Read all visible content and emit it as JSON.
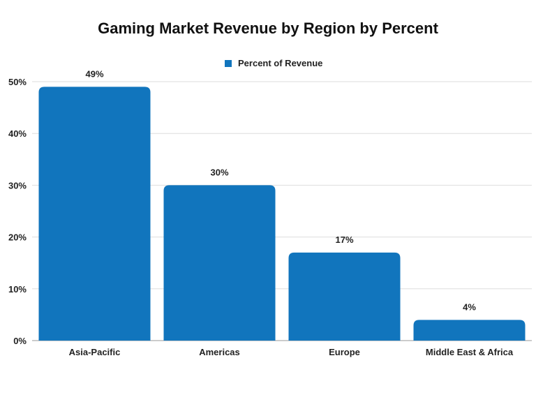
{
  "chart_data": {
    "type": "bar",
    "title": "Gaming Market Revenue by Region by Percent",
    "categories": [
      "Asia-Pacific",
      "Americas",
      "Europe",
      "Middle East & Africa"
    ],
    "series": [
      {
        "name": "Percent of Revenue",
        "values": [
          49,
          30,
          17,
          4
        ],
        "color": "#1175bd"
      }
    ],
    "data_labels": [
      "49%",
      "30%",
      "17%",
      "4%"
    ],
    "yticks": [
      "0%",
      "10%",
      "20%",
      "30%",
      "40%",
      "50%"
    ],
    "ylim": [
      0,
      50
    ],
    "xlabel": "",
    "ylabel": "",
    "grid": true,
    "legend_position": "top"
  }
}
